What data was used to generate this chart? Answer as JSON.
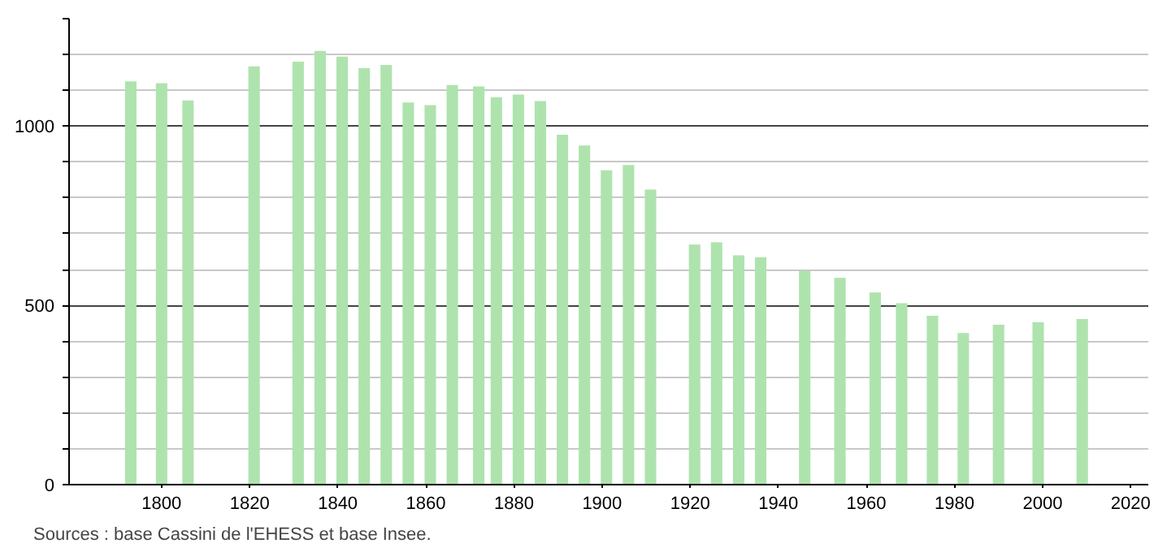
{
  "chart_data": {
    "type": "bar",
    "x": [
      1793,
      1800,
      1806,
      1821,
      1831,
      1836,
      1841,
      1846,
      1851,
      1856,
      1861,
      1866,
      1872,
      1876,
      1881,
      1886,
      1891,
      1896,
      1901,
      1906,
      1911,
      1921,
      1926,
      1931,
      1936,
      1946,
      1954,
      1962,
      1968,
      1975,
      1982,
      1990,
      1999,
      2009
    ],
    "values": [
      1125,
      1120,
      1072,
      1167,
      1180,
      1210,
      1194,
      1162,
      1171,
      1066,
      1059,
      1115,
      1111,
      1081,
      1088,
      1070,
      976,
      946,
      877,
      892,
      823,
      670,
      676,
      640,
      634,
      596,
      577,
      536,
      506,
      471,
      423,
      446,
      453,
      462
    ],
    "color": "#aee3ae",
    "xlim": [
      1779,
      2024
    ],
    "xticks": [
      1800,
      1820,
      1840,
      1860,
      1880,
      1900,
      1920,
      1940,
      1960,
      1980,
      2000,
      2020
    ],
    "ylim": [
      0,
      1300
    ],
    "yticks": [
      0,
      {
        "value": 100,
        "label": null
      },
      {
        "value": 200,
        "label": null
      },
      {
        "value": 300,
        "label": null
      },
      {
        "value": 400,
        "label": null
      },
      500,
      {
        "value": 600,
        "label": null
      },
      {
        "value": 700,
        "label": null
      },
      {
        "value": 800,
        "label": null
      },
      {
        "value": 900,
        "label": null
      },
      1000,
      {
        "value": 1100,
        "label": null
      },
      {
        "value": 1200,
        "label": null
      },
      {
        "value": 1300,
        "label": null
      }
    ],
    "grid": "y",
    "annotations": [
      "Sources : base Cassini de l'EHESS et base Insee."
    ]
  }
}
